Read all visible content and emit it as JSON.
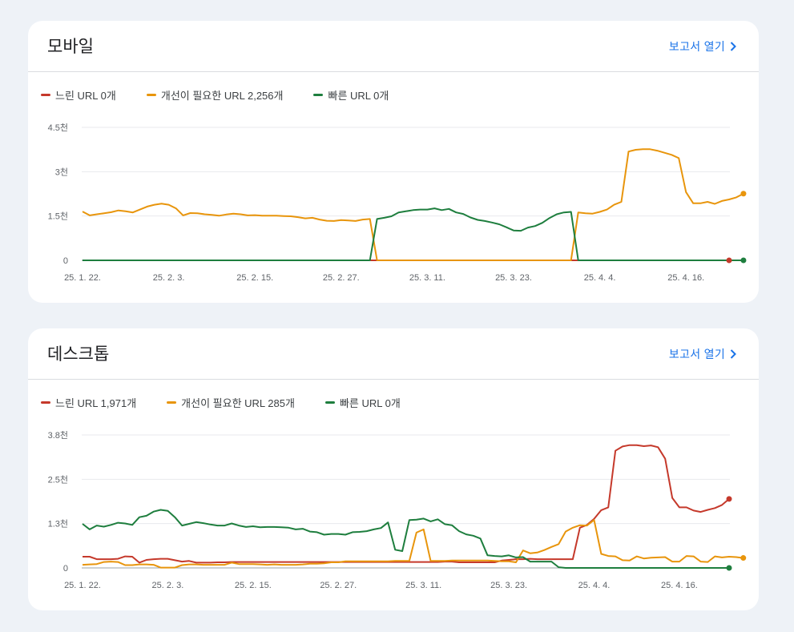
{
  "colors": {
    "slow": "#c5392b",
    "needs_improvement": "#e8950c",
    "fast": "#1e7e3e",
    "link": "#1a73e8"
  },
  "cards": [
    {
      "title": "모바일",
      "link_label": "보고서 열기",
      "link_icon": "chevron-right-icon",
      "legend": [
        "느린 URL 0개",
        "개선이 필요한 URL 2,256개",
        "빠른 URL 0개"
      ]
    },
    {
      "title": "데스크톱",
      "link_label": "보고서 열기",
      "link_icon": "chevron-right-icon",
      "legend": [
        "느린 URL 1,971개",
        "개선이 필요한 URL 285개",
        "빠른 URL 0개"
      ]
    }
  ],
  "chart_data": [
    {
      "type": "line",
      "x_tick_labels": [
        "25. 1. 22.",
        "25. 2. 3.",
        "25. 2. 15.",
        "25. 2. 27.",
        "25. 3. 11.",
        "25. 3. 23.",
        "25. 4. 4.",
        "25. 4. 16."
      ],
      "x_tick_index": [
        0,
        12,
        24,
        36,
        48,
        60,
        72,
        84
      ],
      "y_tick_labels": [
        "0",
        "1.5천",
        "3천",
        "4.5천"
      ],
      "ylim": [
        0,
        4500
      ],
      "grid": true,
      "legend_position": "top-left",
      "series": [
        {
          "name": "느린 URL 0개",
          "key": "slow",
          "values": [
            0,
            0,
            0,
            0,
            0,
            0,
            0,
            0,
            0,
            0,
            0,
            0,
            0,
            0,
            0,
            0,
            0,
            0,
            0,
            0,
            0,
            0,
            0,
            0,
            0,
            0,
            0,
            0,
            0,
            0,
            0,
            0,
            0,
            0,
            0,
            0,
            0,
            0,
            0,
            0,
            0,
            0,
            0,
            0,
            0,
            0,
            0,
            0,
            0,
            0,
            0,
            0,
            0,
            0,
            0,
            0,
            0,
            0,
            0,
            0,
            0,
            0,
            0,
            0,
            0,
            0,
            0,
            0,
            0,
            0,
            0,
            0,
            0,
            0,
            0,
            0,
            0,
            0,
            0,
            0,
            0,
            0,
            0,
            0,
            0,
            0,
            0,
            0,
            0,
            0,
            0
          ]
        },
        {
          "name": "개선이 필요한 URL 2,256개",
          "key": "needs_improvement",
          "values": [
            1650,
            1520,
            1560,
            1590,
            1630,
            1690,
            1660,
            1620,
            1720,
            1820,
            1880,
            1920,
            1880,
            1760,
            1520,
            1600,
            1590,
            1560,
            1540,
            1510,
            1550,
            1580,
            1560,
            1520,
            1530,
            1510,
            1510,
            1510,
            1500,
            1490,
            1460,
            1420,
            1440,
            1380,
            1340,
            1330,
            1360,
            1350,
            1330,
            1380,
            1400,
            0,
            0,
            0,
            0,
            0,
            0,
            0,
            0,
            0,
            0,
            0,
            0,
            0,
            0,
            0,
            0,
            0,
            0,
            0,
            0,
            0,
            0,
            0,
            0,
            0,
            0,
            0,
            0,
            1620,
            1590,
            1580,
            1640,
            1720,
            1880,
            1980,
            3680,
            3740,
            3760,
            3760,
            3710,
            3640,
            3570,
            3460,
            2310,
            1930,
            1930,
            1980,
            1910,
            2010,
            2060,
            2130,
            2256
          ]
        },
        {
          "name": "빠른 URL 0개",
          "key": "fast",
          "values": [
            0,
            0,
            0,
            0,
            0,
            0,
            0,
            0,
            0,
            0,
            0,
            0,
            0,
            0,
            0,
            0,
            0,
            0,
            0,
            0,
            0,
            0,
            0,
            0,
            0,
            0,
            0,
            0,
            0,
            0,
            0,
            0,
            0,
            0,
            0,
            0,
            0,
            0,
            0,
            0,
            0,
            1400,
            1440,
            1490,
            1620,
            1660,
            1700,
            1720,
            1720,
            1760,
            1700,
            1740,
            1620,
            1570,
            1450,
            1370,
            1330,
            1280,
            1220,
            1120,
            1010,
            1000,
            1110,
            1160,
            1270,
            1430,
            1560,
            1620,
            1640,
            0,
            0,
            0,
            0,
            0,
            0,
            0,
            0,
            0,
            0,
            0,
            0,
            0,
            0,
            0,
            0,
            0,
            0,
            0,
            0,
            0,
            0,
            0,
            0
          ]
        }
      ]
    },
    {
      "type": "line",
      "x_tick_labels": [
        "25. 1. 22.",
        "25. 2. 3.",
        "25. 2. 15.",
        "25. 2. 27.",
        "25. 3. 11.",
        "25. 3. 23.",
        "25. 4. 4.",
        "25. 4. 16."
      ],
      "x_tick_index": [
        0,
        12,
        24,
        36,
        48,
        60,
        72,
        84
      ],
      "y_tick_labels": [
        "0",
        "1.3천",
        "2.5천",
        "3.8천"
      ],
      "ylim": [
        0,
        3800
      ],
      "grid": true,
      "legend_position": "top-left",
      "series": [
        {
          "name": "느린 URL 1,971개",
          "key": "slow",
          "values": [
            320,
            320,
            250,
            250,
            250,
            260,
            330,
            320,
            150,
            230,
            250,
            260,
            260,
            220,
            180,
            200,
            150,
            150,
            150,
            160,
            160,
            170,
            170,
            170,
            170,
            170,
            170,
            170,
            170,
            170,
            170,
            170,
            170,
            170,
            170,
            170,
            170,
            170,
            170,
            170,
            170,
            170,
            170,
            170,
            170,
            170,
            170,
            170,
            170,
            170,
            170,
            180,
            180,
            160,
            160,
            160,
            160,
            160,
            160,
            210,
            230,
            250,
            250,
            260,
            250,
            250,
            250,
            250,
            250,
            250,
            1150,
            1230,
            1400,
            1650,
            1730,
            3350,
            3470,
            3510,
            3510,
            3480,
            3500,
            3450,
            3120,
            2000,
            1730,
            1730,
            1640,
            1600,
            1660,
            1710,
            1800,
            1971
          ]
        },
        {
          "name": "개선이 필요한 URL 285개",
          "key": "needs_improvement",
          "values": [
            90,
            100,
            110,
            170,
            180,
            170,
            80,
            80,
            100,
            100,
            90,
            10,
            10,
            10,
            80,
            100,
            100,
            90,
            90,
            90,
            90,
            150,
            110,
            110,
            110,
            100,
            90,
            100,
            90,
            90,
            90,
            100,
            120,
            120,
            130,
            160,
            160,
            190,
            190,
            190,
            190,
            190,
            190,
            190,
            200,
            200,
            200,
            1010,
            1100,
            200,
            200,
            200,
            210,
            210,
            210,
            210,
            210,
            210,
            200,
            190,
            190,
            160,
            500,
            420,
            440,
            510,
            600,
            680,
            1040,
            1150,
            1220,
            1210,
            1370,
            400,
            340,
            330,
            220,
            210,
            330,
            270,
            290,
            300,
            310,
            180,
            180,
            340,
            330,
            180,
            170,
            330,
            300,
            320,
            310,
            285
          ]
        },
        {
          "name": "빠른 URL 0개",
          "key": "fast",
          "values": [
            1260,
            1100,
            1210,
            1180,
            1230,
            1290,
            1270,
            1230,
            1450,
            1490,
            1610,
            1660,
            1630,
            1450,
            1210,
            1260,
            1310,
            1280,
            1240,
            1210,
            1210,
            1270,
            1210,
            1170,
            1190,
            1160,
            1170,
            1170,
            1160,
            1150,
            1100,
            1120,
            1040,
            1020,
            950,
            970,
            970,
            950,
            1020,
            1030,
            1050,
            1100,
            1140,
            1300,
            520,
            480,
            1370,
            1380,
            1410,
            1330,
            1390,
            1250,
            1220,
            1050,
            960,
            920,
            840,
            360,
            340,
            330,
            360,
            300,
            310,
            180,
            180,
            180,
            180,
            20,
            0,
            0,
            0,
            0,
            0,
            0,
            0,
            0,
            0,
            0,
            0,
            0,
            0,
            0,
            0,
            0,
            0,
            0,
            0,
            0,
            0,
            0,
            0,
            0
          ]
        }
      ]
    }
  ]
}
